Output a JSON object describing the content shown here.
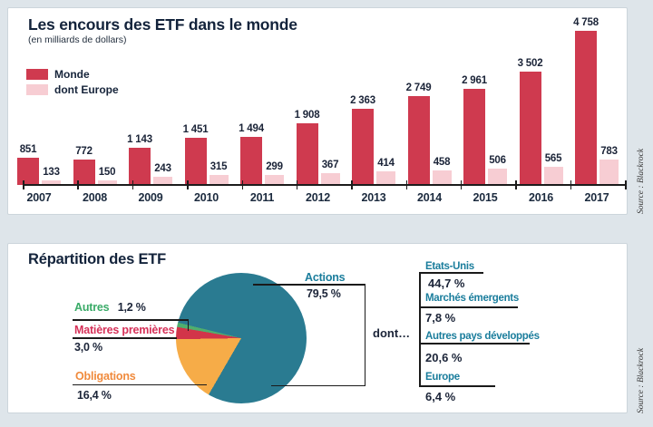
{
  "colors": {
    "page_bg": "#dee5ea",
    "bar_red": "#cf3a4f",
    "bar_pink": "#f7cdd3",
    "pie_teal": "#2a7b91",
    "pie_orange": "#f6ac48",
    "pie_red": "#d23449",
    "pie_green": "#4fae6e",
    "navy_text": "#16243a"
  },
  "panel1": {
    "source": "Source : Blackrock"
  },
  "panel2": {
    "source": "Source : Blackrock"
  },
  "chart_data": [
    {
      "type": "bar",
      "title": "Les encours des ETF dans le monde",
      "subtitle": "(en milliards de dollars)",
      "categories": [
        "2007",
        "2008",
        "2009",
        "2010",
        "2011",
        "2012",
        "2013",
        "2014",
        "2015",
        "2016",
        "2017"
      ],
      "series": [
        {
          "name": "Monde",
          "color": "#cf3a4f",
          "values": [
            851,
            772,
            1143,
            1451,
            1494,
            1908,
            2363,
            2749,
            2961,
            3502,
            4758
          ],
          "display": [
            "851",
            "772",
            "1 143",
            "1 451",
            "1 494",
            "1 908",
            "2 363",
            "2 749",
            "2 961",
            "3 502",
            "4 758"
          ]
        },
        {
          "name": "dont Europe",
          "color": "#f7cdd3",
          "values": [
            133,
            150,
            243,
            315,
            299,
            367,
            414,
            458,
            506,
            565,
            783
          ],
          "display": [
            "133",
            "150",
            "243",
            "315",
            "299",
            "367",
            "414",
            "458",
            "506",
            "565",
            "783"
          ]
        }
      ],
      "ylim": [
        0,
        4758
      ],
      "grid": false,
      "value_labels": true,
      "legend_position": "top-left",
      "unit": "milliards de dollars"
    },
    {
      "type": "pie",
      "title": "Répartition des ETF",
      "start_deg": 283.8,
      "clockwise": true,
      "slices": [
        {
          "label": "Actions",
          "pct": 79.5,
          "display": "79,5 %",
          "color": "#2a7b91"
        },
        {
          "label": "Obligations",
          "pct": 16.4,
          "display": "16,4 %",
          "color": "#f6ac48"
        },
        {
          "label": "Matières premières",
          "pct": 3.0,
          "display": "3,0 %",
          "color": "#d23449"
        },
        {
          "label": "Autres",
          "pct": 1.2,
          "display": "1,2 %",
          "color": "#4fae6e"
        }
      ],
      "dont": {
        "label": "dont…",
        "of": "Actions",
        "items": [
          {
            "label": "Etats-Unis",
            "pct": 44.7,
            "display": "44,7 %"
          },
          {
            "label": "Marchés émergents",
            "pct": 7.8,
            "display": "7,8 %"
          },
          {
            "label": "Autres pays développés",
            "pct": 20.6,
            "display": "20,6 %"
          },
          {
            "label": "Europe",
            "pct": 6.4,
            "display": "6,4 %"
          }
        ]
      }
    }
  ]
}
